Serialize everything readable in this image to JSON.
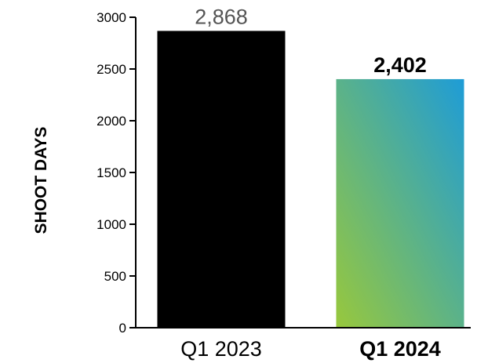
{
  "chart_data": {
    "type": "bar",
    "title": "",
    "xlabel": "",
    "ylabel": "SHOOT DAYS",
    "ylim": [
      0,
      3000
    ],
    "yticks": [
      0,
      500,
      1000,
      1500,
      2000,
      2500,
      3000
    ],
    "ytick_labels": [
      "0",
      "500",
      "1000",
      "1500",
      "2000",
      "2500",
      "3000"
    ],
    "categories": [
      "Q1 2023",
      "Q1 2024"
    ],
    "values": [
      2868,
      2402
    ],
    "data_labels": [
      "2,868",
      "2,402"
    ],
    "category_bold": [
      false,
      true
    ],
    "label_bold": [
      false,
      true
    ],
    "label_colors": [
      "#555555",
      "#000000"
    ],
    "bar_fills": [
      "solid",
      "gradient"
    ],
    "colors": {
      "bar_1": "#000000",
      "bar_2_gradient_top": "#1e9cd7",
      "bar_2_gradient_bottom": "#98c83c",
      "axis": "#000000"
    },
    "grid": false,
    "legend": "none"
  }
}
